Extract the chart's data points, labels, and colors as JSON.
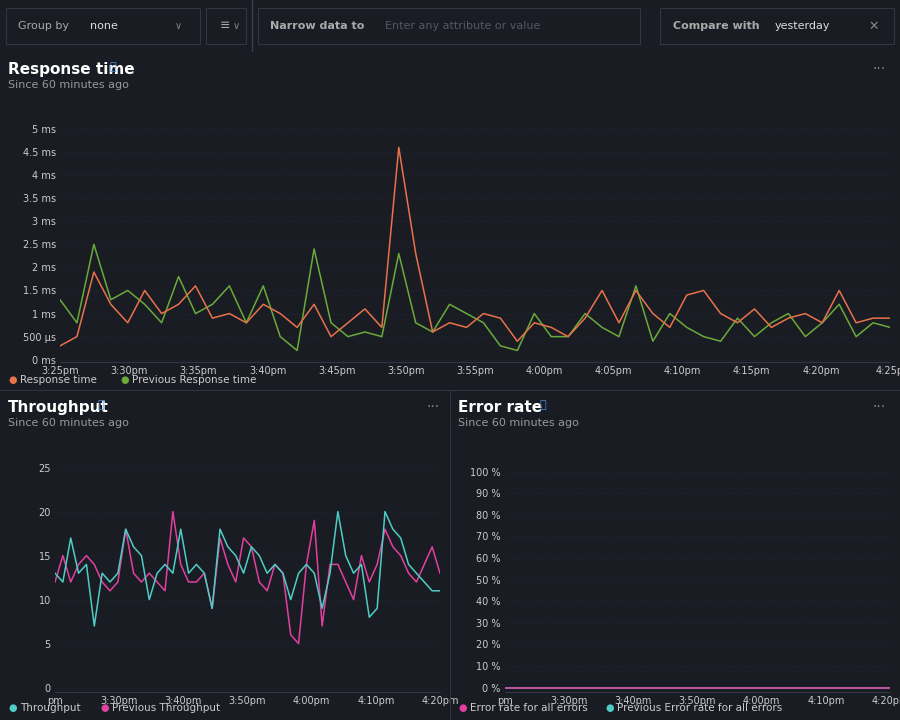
{
  "bg_color": "#1a1c23",
  "toolbar_bg": "#151720",
  "panel_border": "#2a2d3e",
  "text_color": "#cccccc",
  "title_color": "#ffffff",
  "subtitle_color": "#999999",
  "grid_color": "#252836",
  "info_color": "#4a90d9",
  "response_time": {
    "title": "Response time",
    "subtitle": "Since 60 minutes ago",
    "yticks": [
      "0 ms",
      "500 µs",
      "1 ms",
      "1.5 ms",
      "2 ms",
      "2.5 ms",
      "3 ms",
      "3.5 ms",
      "4 ms",
      "4.5 ms",
      "5 ms"
    ],
    "yvalues": [
      0,
      0.5,
      1.0,
      1.5,
      2.0,
      2.5,
      3.0,
      3.5,
      4.0,
      4.5,
      5.0
    ],
    "xticks": [
      "3:25pm",
      "3:30pm",
      "3:35pm",
      "3:40pm",
      "3:45pm",
      "3:50pm",
      "3:55pm",
      "4:00pm",
      "4:05pm",
      "4:10pm",
      "4:15pm",
      "4:20pm",
      "4:25p"
    ],
    "current_color": "#e8724a",
    "previous_color": "#6aaa3a",
    "current_label": "Response time",
    "previous_label": "Previous Response time",
    "current_data": [
      0.3,
      0.5,
      1.9,
      1.2,
      0.8,
      1.5,
      1.0,
      1.2,
      1.6,
      0.9,
      1.0,
      0.8,
      1.2,
      1.0,
      0.7,
      1.2,
      0.5,
      0.8,
      1.1,
      0.7,
      4.6,
      2.3,
      0.6,
      0.8,
      0.7,
      1.0,
      0.9,
      0.4,
      0.8,
      0.7,
      0.5,
      0.9,
      1.5,
      0.8,
      1.5,
      1.0,
      0.7,
      1.4,
      1.5,
      1.0,
      0.8,
      1.1,
      0.7,
      0.9,
      1.0,
      0.8,
      1.5,
      0.8,
      0.9,
      0.9
    ],
    "previous_data": [
      1.3,
      0.8,
      2.5,
      1.3,
      1.5,
      1.2,
      0.8,
      1.8,
      1.0,
      1.2,
      1.6,
      0.8,
      1.6,
      0.5,
      0.2,
      2.4,
      0.8,
      0.5,
      0.6,
      0.5,
      2.3,
      0.8,
      0.6,
      1.2,
      1.0,
      0.8,
      0.3,
      0.2,
      1.0,
      0.5,
      0.5,
      1.0,
      0.7,
      0.5,
      1.6,
      0.4,
      1.0,
      0.7,
      0.5,
      0.4,
      0.9,
      0.5,
      0.8,
      1.0,
      0.5,
      0.8,
      1.2,
      0.5,
      0.8,
      0.7
    ]
  },
  "throughput": {
    "title": "Throughput",
    "subtitle": "Since 60 minutes ago",
    "yticks": [
      0,
      5,
      10,
      15,
      20,
      25
    ],
    "xticks": [
      "pm",
      "3:30pm",
      "3:40pm",
      "3:50pm",
      "4:00pm",
      "4:10pm",
      "4:20pm"
    ],
    "current_color": "#4ecdc4",
    "previous_color": "#e040a0",
    "current_label": "Throughput",
    "previous_label": "Previous Throughput",
    "current_data": [
      13,
      12,
      17,
      13,
      14,
      7,
      13,
      12,
      13,
      18,
      16,
      15,
      10,
      13,
      14,
      13,
      18,
      13,
      14,
      13,
      9,
      18,
      16,
      15,
      13,
      16,
      15,
      13,
      14,
      13,
      10,
      13,
      14,
      13,
      9,
      13,
      20,
      15,
      13,
      14,
      8,
      9,
      20,
      18,
      17,
      14,
      13,
      12,
      11,
      11
    ],
    "previous_data": [
      12,
      15,
      12,
      14,
      15,
      14,
      12,
      11,
      12,
      18,
      13,
      12,
      13,
      12,
      11,
      20,
      14,
      12,
      12,
      13,
      9,
      17,
      14,
      12,
      17,
      16,
      12,
      11,
      14,
      13,
      6,
      5,
      14,
      19,
      7,
      14,
      14,
      12,
      10,
      15,
      12,
      14,
      18,
      16,
      15,
      13,
      12,
      14,
      16,
      13
    ]
  },
  "error_rate": {
    "title": "Error rate",
    "subtitle": "Since 60 minutes ago",
    "yticks": [
      "0 %",
      "10 %",
      "20 %",
      "30 %",
      "40 %",
      "50 %",
      "60 %",
      "70 %",
      "80 %",
      "90 %",
      "100 %"
    ],
    "yvalues": [
      0,
      10,
      20,
      30,
      40,
      50,
      60,
      70,
      80,
      90,
      100
    ],
    "xticks": [
      "pm",
      "3:30pm",
      "3:40pm",
      "3:50pm",
      "4:00pm",
      "4:10pm",
      "4:20pm"
    ],
    "current_color": "#e040a0",
    "previous_color": "#4ecdc4",
    "current_label": "Error rate for all errors",
    "previous_label": "Previous Error rate for all errors",
    "current_data": [
      0,
      0,
      0,
      0,
      0,
      0,
      0,
      0,
      0,
      0,
      0,
      0,
      0,
      0,
      0,
      0,
      0,
      0,
      0,
      0,
      0,
      0,
      0,
      0,
      0,
      0,
      0,
      0,
      0,
      0,
      0,
      0,
      0,
      0,
      0,
      0,
      0,
      0,
      0,
      0,
      0,
      0,
      0,
      0,
      0,
      0,
      0,
      0,
      0,
      0
    ],
    "previous_data": [
      0,
      0,
      0,
      0,
      0,
      0,
      0,
      0,
      0,
      0,
      0,
      0,
      0,
      0,
      0,
      0,
      0,
      0,
      0,
      0,
      0,
      0,
      0,
      0,
      0,
      0,
      0,
      0,
      0,
      0,
      0,
      0,
      0,
      0,
      0,
      0,
      0,
      0,
      0,
      0,
      0,
      0,
      0,
      0,
      0,
      0,
      0,
      0,
      0,
      0
    ]
  }
}
